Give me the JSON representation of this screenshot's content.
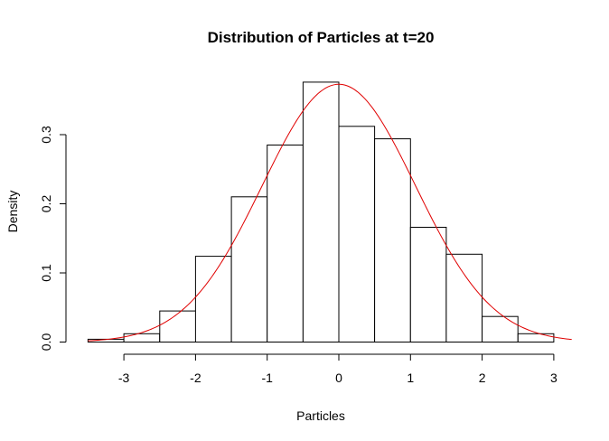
{
  "chart_data": {
    "type": "bar",
    "title": "Distribution of Particles at t=20",
    "xlabel": "Particles",
    "ylabel": "Density",
    "bins": [
      {
        "x0": -3.5,
        "x1": -3.0,
        "density": 0.004
      },
      {
        "x0": -3.0,
        "x1": -2.5,
        "density": 0.012
      },
      {
        "x0": -2.5,
        "x1": -2.0,
        "density": 0.045
      },
      {
        "x0": -2.0,
        "x1": -1.5,
        "density": 0.124
      },
      {
        "x0": -1.5,
        "x1": -1.0,
        "density": 0.21
      },
      {
        "x0": -1.0,
        "x1": -0.5,
        "density": 0.285
      },
      {
        "x0": -0.5,
        "x1": 0.0,
        "density": 0.376
      },
      {
        "x0": 0.0,
        "x1": 0.5,
        "density": 0.312
      },
      {
        "x0": 0.5,
        "x1": 1.0,
        "density": 0.294
      },
      {
        "x0": 1.0,
        "x1": 1.5,
        "density": 0.166
      },
      {
        "x0": 1.5,
        "x1": 2.0,
        "density": 0.127
      },
      {
        "x0": 2.0,
        "x1": 2.5,
        "density": 0.037
      },
      {
        "x0": 2.5,
        "x1": 3.0,
        "density": 0.012
      }
    ],
    "curve": {
      "type": "normal",
      "mean": 0.0,
      "sd": 1.07,
      "x_range": [
        -3.5,
        3.25
      ],
      "color": "#e00000"
    },
    "xlim": [
      -3.5,
      3.0
    ],
    "ylim": [
      0,
      0.376
    ],
    "x_ticks": [
      -3,
      -2,
      -1,
      0,
      1,
      2,
      3
    ],
    "x_tick_labels": [
      "-3",
      "-2",
      "-1",
      "0",
      "1",
      "2",
      "3"
    ],
    "y_ticks": [
      0.0,
      0.1,
      0.2,
      0.3
    ],
    "y_tick_labels": [
      "0.0",
      "0.1",
      "0.2",
      "0.3"
    ],
    "grid": false,
    "legend": "none"
  }
}
